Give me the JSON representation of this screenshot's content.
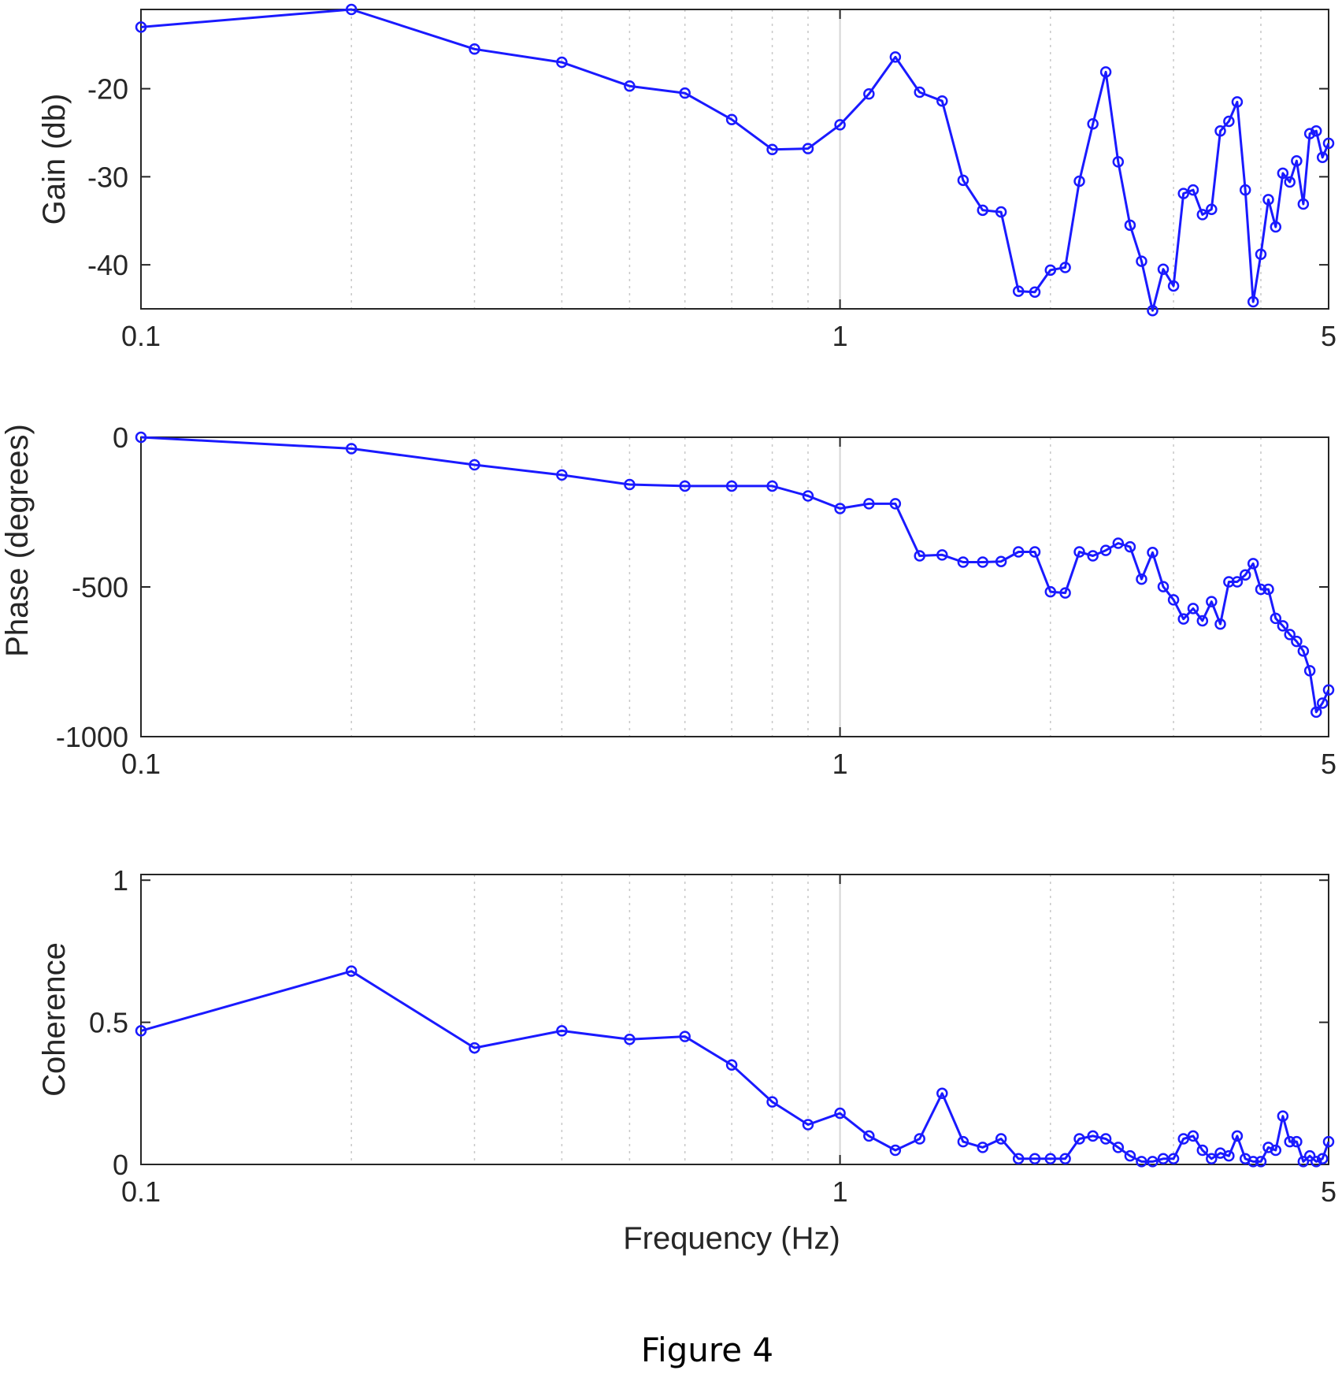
{
  "figure": {
    "caption": "Figure 4",
    "xlabel": "Frequency (Hz)",
    "line_color": "#1a1aff"
  },
  "chart_data": [
    {
      "type": "line",
      "id": "gain",
      "ylabel": "Gain (db)",
      "xscale": "log",
      "xlim": [
        0.1,
        5
      ],
      "ylim": [
        -45,
        -11
      ],
      "xticks": [
        {
          "value": 0.1,
          "label": "0.1"
        },
        {
          "value": 1,
          "label": "1"
        },
        {
          "value": 5,
          "label": "5"
        }
      ],
      "yticks": [
        {
          "value": -20,
          "label": "-20"
        },
        {
          "value": -30,
          "label": "-30"
        },
        {
          "value": -40,
          "label": "-40"
        }
      ],
      "grid": true,
      "x": [
        0.1,
        0.2,
        0.3,
        0.4,
        0.5,
        0.6,
        0.7,
        0.8,
        0.9,
        1.0,
        1.1,
        1.2,
        1.3,
        1.4,
        1.5,
        1.6,
        1.7,
        1.8,
        1.9,
        2.0,
        2.1,
        2.2,
        2.3,
        2.4,
        2.5,
        2.6,
        2.7,
        2.8,
        2.9,
        3.0,
        3.1,
        3.2,
        3.3,
        3.4,
        3.5,
        3.6,
        3.7,
        3.8,
        3.9,
        4.0,
        4.1,
        4.2,
        4.3,
        4.4,
        4.5,
        4.6,
        4.7,
        4.8,
        4.9,
        5.0
      ],
      "y": [
        -13.0,
        -11.0,
        -15.5,
        -17.0,
        -19.7,
        -20.5,
        -23.5,
        -26.9,
        -26.8,
        -24.1,
        -20.6,
        -16.4,
        -20.4,
        -21.4,
        -30.4,
        -33.8,
        -34.0,
        -43.0,
        -43.1,
        -40.6,
        -40.3,
        -30.5,
        -24.0,
        -18.1,
        -28.3,
        -35.5,
        -39.6,
        -45.2,
        -40.5,
        -42.4,
        -31.9,
        -31.5,
        -34.3,
        -33.7,
        -24.8,
        -23.7,
        -21.5,
        -31.5,
        -44.2,
        -38.8,
        -32.6,
        -35.7,
        -29.6,
        -30.6,
        -28.2,
        -33.1,
        -25.1,
        -24.8,
        -27.8,
        -26.2
      ]
    },
    {
      "type": "line",
      "id": "phase",
      "ylabel": "Phase (degrees)",
      "xscale": "log",
      "xlim": [
        0.1,
        5
      ],
      "ylim": [
        -1000,
        0
      ],
      "xticks": [
        {
          "value": 0.1,
          "label": "0.1"
        },
        {
          "value": 1,
          "label": "1"
        },
        {
          "value": 5,
          "label": "5"
        }
      ],
      "yticks": [
        {
          "value": 0,
          "label": "0"
        },
        {
          "value": -500,
          "label": "-500"
        },
        {
          "value": -1000,
          "label": "-1000"
        }
      ],
      "grid": true,
      "x": [
        0.1,
        0.2,
        0.3,
        0.4,
        0.5,
        0.6,
        0.7,
        0.8,
        0.9,
        1.0,
        1.1,
        1.2,
        1.3,
        1.4,
        1.5,
        1.6,
        1.7,
        1.8,
        1.9,
        2.0,
        2.1,
        2.2,
        2.3,
        2.4,
        2.5,
        2.6,
        2.7,
        2.8,
        2.9,
        3.0,
        3.1,
        3.2,
        3.3,
        3.4,
        3.5,
        3.6,
        3.7,
        3.8,
        3.9,
        4.0,
        4.1,
        4.2,
        4.3,
        4.4,
        4.5,
        4.6,
        4.7,
        4.8,
        4.9,
        5.0
      ],
      "y": [
        0,
        -38,
        -92,
        -126,
        -158,
        -163,
        -163,
        -163,
        -196,
        -238,
        -222,
        -222,
        -396,
        -393,
        -417,
        -417,
        -415,
        -383,
        -383,
        -516,
        -520,
        -383,
        -396,
        -378,
        -354,
        -366,
        -474,
        -385,
        -499,
        -543,
        -607,
        -572,
        -613,
        -549,
        -624,
        -483,
        -483,
        -460,
        -422,
        -508,
        -508,
        -605,
        -630,
        -659,
        -682,
        -714,
        -780,
        -918,
        -888,
        -844
      ]
    },
    {
      "type": "line",
      "id": "coherence",
      "ylabel": "Coherence",
      "xscale": "log",
      "xlim": [
        0.1,
        5
      ],
      "ylim": [
        0,
        1.02
      ],
      "xticks": [
        {
          "value": 0.1,
          "label": "0.1"
        },
        {
          "value": 1,
          "label": "1"
        },
        {
          "value": 5,
          "label": "5"
        }
      ],
      "yticks": [
        {
          "value": 0,
          "label": "0"
        },
        {
          "value": 0.5,
          "label": "0.5"
        },
        {
          "value": 1,
          "label": "1"
        }
      ],
      "grid": true,
      "x": [
        0.1,
        0.2,
        0.3,
        0.4,
        0.5,
        0.6,
        0.7,
        0.8,
        0.9,
        1.0,
        1.1,
        1.2,
        1.3,
        1.4,
        1.5,
        1.6,
        1.7,
        1.8,
        1.9,
        2.0,
        2.1,
        2.2,
        2.3,
        2.4,
        2.5,
        2.6,
        2.7,
        2.8,
        2.9,
        3.0,
        3.1,
        3.2,
        3.3,
        3.4,
        3.5,
        3.6,
        3.7,
        3.8,
        3.9,
        4.0,
        4.1,
        4.2,
        4.3,
        4.4,
        4.5,
        4.6,
        4.7,
        4.8,
        4.9,
        5.0
      ],
      "y": [
        0.47,
        0.68,
        0.41,
        0.47,
        0.44,
        0.45,
        0.35,
        0.22,
        0.14,
        0.18,
        0.1,
        0.05,
        0.09,
        0.25,
        0.08,
        0.06,
        0.09,
        0.02,
        0.02,
        0.02,
        0.02,
        0.09,
        0.1,
        0.09,
        0.06,
        0.03,
        0.01,
        0.01,
        0.02,
        0.02,
        0.09,
        0.1,
        0.05,
        0.02,
        0.04,
        0.03,
        0.1,
        0.02,
        0.01,
        0.01,
        0.06,
        0.05,
        0.17,
        0.08,
        0.08,
        0.01,
        0.03,
        0.01,
        0.02,
        0.08
      ]
    }
  ]
}
